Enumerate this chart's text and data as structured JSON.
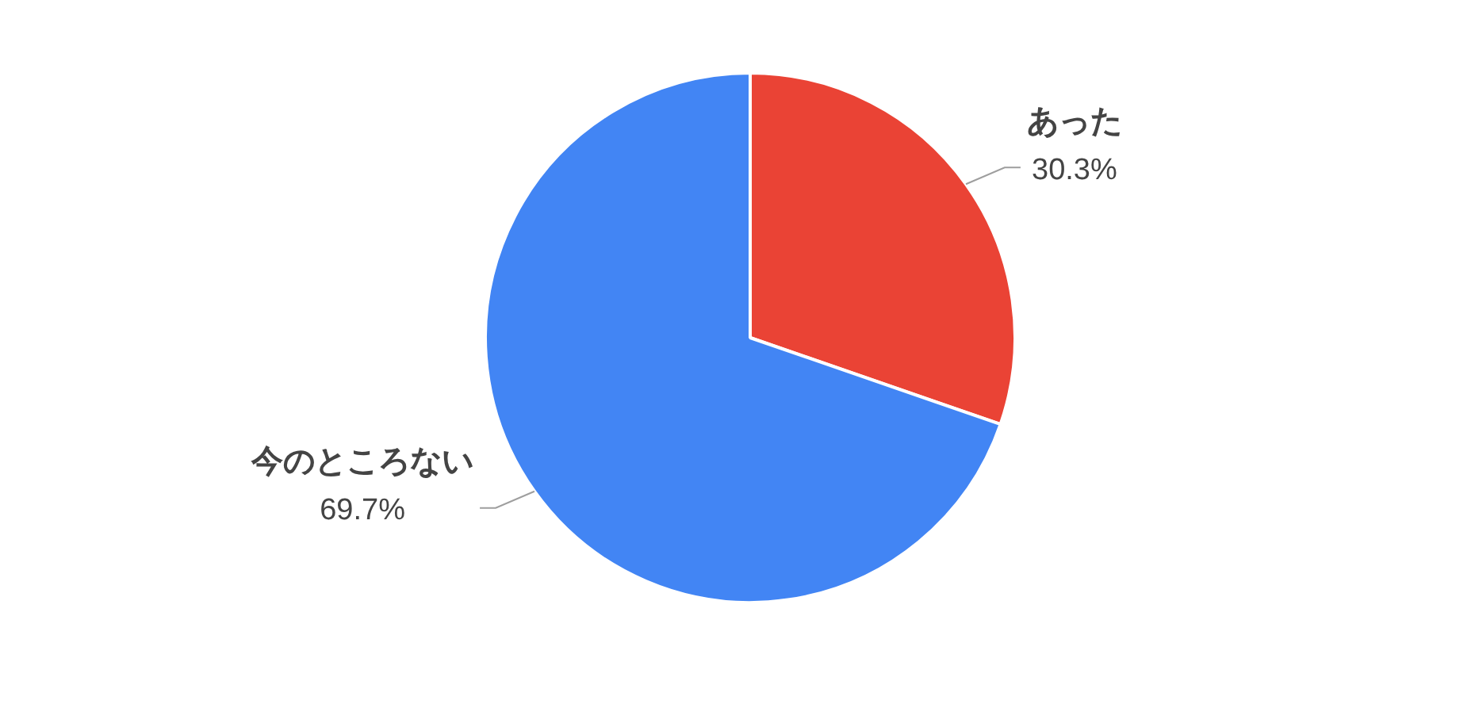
{
  "chart_data": {
    "type": "pie",
    "categories": [
      "あった",
      "今のところない"
    ],
    "values": [
      30.3,
      69.7
    ],
    "colors": [
      "#ea4335",
      "#4285f4"
    ],
    "value_labels": [
      "30.3%",
      "69.7%"
    ],
    "legend": false
  }
}
